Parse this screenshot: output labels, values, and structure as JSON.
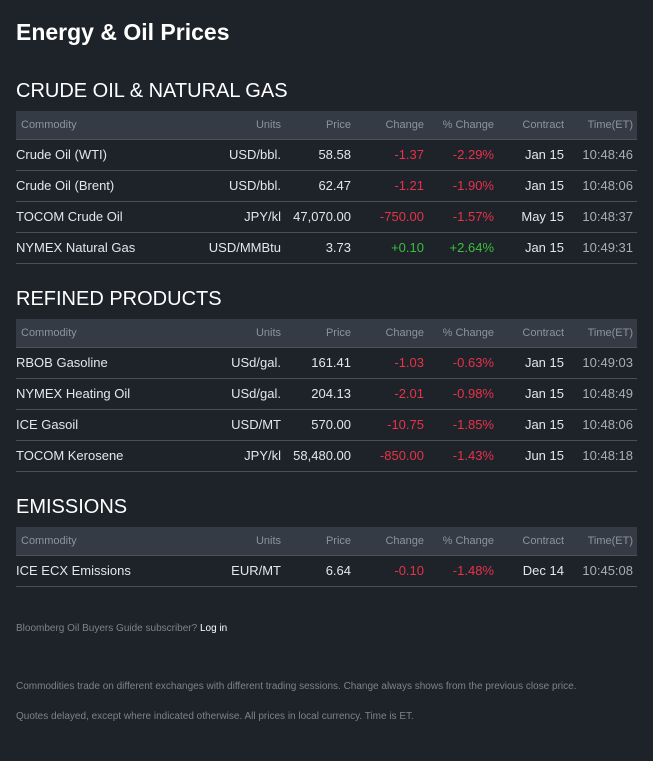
{
  "page_title": "Energy & Oil Prices",
  "columns": [
    "Commodity",
    "Units",
    "Price",
    "Change",
    "% Change",
    "Contract",
    "Time(ET)"
  ],
  "sections": [
    {
      "title": "CRUDE OIL & NATURAL GAS",
      "rows": [
        {
          "commodity": "Crude Oil (WTI)",
          "units": "USD/bbl.",
          "price": "58.58",
          "change": "-1.37",
          "pct": "-2.29%",
          "contract": "Jan 15",
          "time": "10:48:46",
          "dir": "neg"
        },
        {
          "commodity": "Crude Oil (Brent)",
          "units": "USD/bbl.",
          "price": "62.47",
          "change": "-1.21",
          "pct": "-1.90%",
          "contract": "Jan 15",
          "time": "10:48:06",
          "dir": "neg"
        },
        {
          "commodity": "TOCOM Crude Oil",
          "units": "JPY/kl",
          "price": "47,070.00",
          "change": "-750.00",
          "pct": "-1.57%",
          "contract": "May 15",
          "time": "10:48:37",
          "dir": "neg"
        },
        {
          "commodity": "NYMEX Natural Gas",
          "units": "USD/MMBtu",
          "price": "3.73",
          "change": "+0.10",
          "pct": "+2.64%",
          "contract": "Jan 15",
          "time": "10:49:31",
          "dir": "pos"
        }
      ]
    },
    {
      "title": "REFINED PRODUCTS",
      "rows": [
        {
          "commodity": "RBOB Gasoline",
          "units": "USd/gal.",
          "price": "161.41",
          "change": "-1.03",
          "pct": "-0.63%",
          "contract": "Jan 15",
          "time": "10:49:03",
          "dir": "neg"
        },
        {
          "commodity": "NYMEX Heating Oil",
          "units": "USd/gal.",
          "price": "204.13",
          "change": "-2.01",
          "pct": "-0.98%",
          "contract": "Jan 15",
          "time": "10:48:49",
          "dir": "neg"
        },
        {
          "commodity": "ICE Gasoil",
          "units": "USD/MT",
          "price": "570.00",
          "change": "-10.75",
          "pct": "-1.85%",
          "contract": "Jan 15",
          "time": "10:48:06",
          "dir": "neg"
        },
        {
          "commodity": "TOCOM Kerosene",
          "units": "JPY/kl",
          "price": "58,480.00",
          "change": "-850.00",
          "pct": "-1.43%",
          "contract": "Jun 15",
          "time": "10:48:18",
          "dir": "neg"
        }
      ]
    },
    {
      "title": "EMISSIONS",
      "rows": [
        {
          "commodity": "ICE ECX Emissions",
          "units": "EUR/MT",
          "price": "6.64",
          "change": "-0.10",
          "pct": "-1.48%",
          "contract": "Dec 14",
          "time": "10:45:08",
          "dir": "neg"
        }
      ]
    }
  ],
  "footer": {
    "subscriber_text": "Bloomberg Oil Buyers Guide subscriber?",
    "login_label": "Log in",
    "note1": "Commodities trade on different exchanges with different trading sessions. Change always shows from the previous close price.",
    "note2": "Quotes delayed, except where indicated otherwise. All prices in local currency. Time is ET."
  },
  "colors": {
    "background": "#1e2229",
    "header_row": "#353b45",
    "negative": "#e8324a",
    "positive": "#3cbf3c"
  }
}
